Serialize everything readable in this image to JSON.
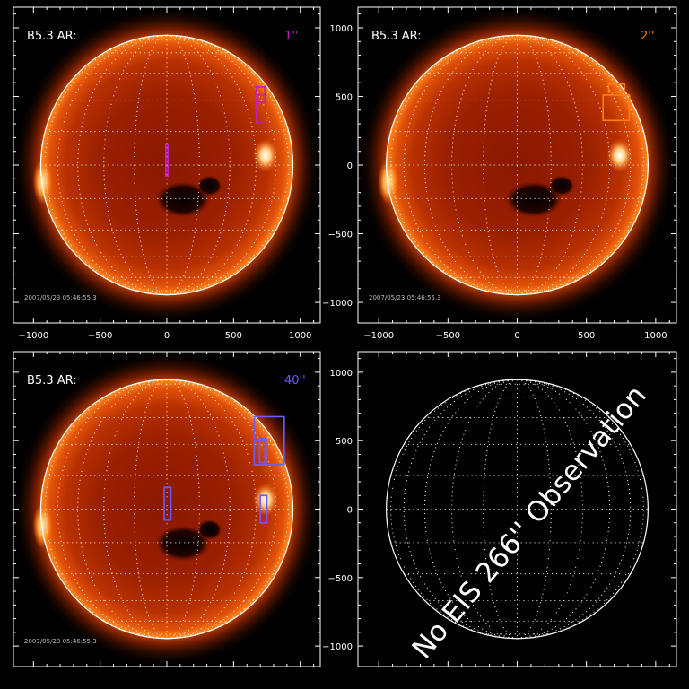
{
  "panels": [
    {
      "id": "p1",
      "label": "B5.3 AR:",
      "slit": "1''",
      "slit_color": "#c020c0",
      "timestamp": "2007/05/23 05:46:55.3 ",
      "has_image": true,
      "boxes": [
        {
          "x": [
            667,
            735
          ],
          "y": [
            460,
            570
          ]
        },
        {
          "x": [
            670,
            740
          ],
          "y": [
            310,
            510
          ]
        },
        {
          "x": [
            -8,
            8
          ],
          "y": [
            -80,
            150
          ]
        }
      ]
    },
    {
      "id": "p2",
      "label": "B5.3 AR:",
      "slit": "2''",
      "slit_color": "#ff7a10",
      "timestamp": "2007/05/23 05:46:55.3 ",
      "has_image": true,
      "boxes": [
        {
          "x": [
            660,
            775
          ],
          "y": [
            530,
            590
          ]
        },
        {
          "x": [
            620,
            810
          ],
          "y": [
            325,
            510
          ]
        }
      ]
    },
    {
      "id": "p3",
      "label": "B5.3 AR:",
      "slit": "40''",
      "slit_color": "#6a5cff",
      "timestamp": "2007/05/23 05:46:55.3 ",
      "has_image": true,
      "boxes": [
        {
          "x": [
            655,
            880
          ],
          "y": [
            325,
            675
          ]
        },
        {
          "x": [
            655,
            735
          ],
          "y": [
            325,
            500
          ]
        },
        {
          "x": [
            695,
            745
          ],
          "y": [
            340,
            520
          ]
        },
        {
          "x": [
            -20,
            30
          ],
          "y": [
            -80,
            160
          ]
        },
        {
          "x": [
            700,
            750
          ],
          "y": [
            -100,
            100
          ]
        }
      ]
    },
    {
      "id": "p4",
      "has_image": false,
      "message": "No EIS 266'' Observation"
    }
  ],
  "axes": {
    "x_ticks": [
      -1000,
      -500,
      0,
      500,
      1000
    ],
    "y_ticks": [
      -1000,
      -500,
      0,
      500,
      1000
    ],
    "x_range": [
      -1150,
      1150
    ],
    "y_range": [
      -1150,
      1150
    ],
    "sun_radius": 945
  }
}
